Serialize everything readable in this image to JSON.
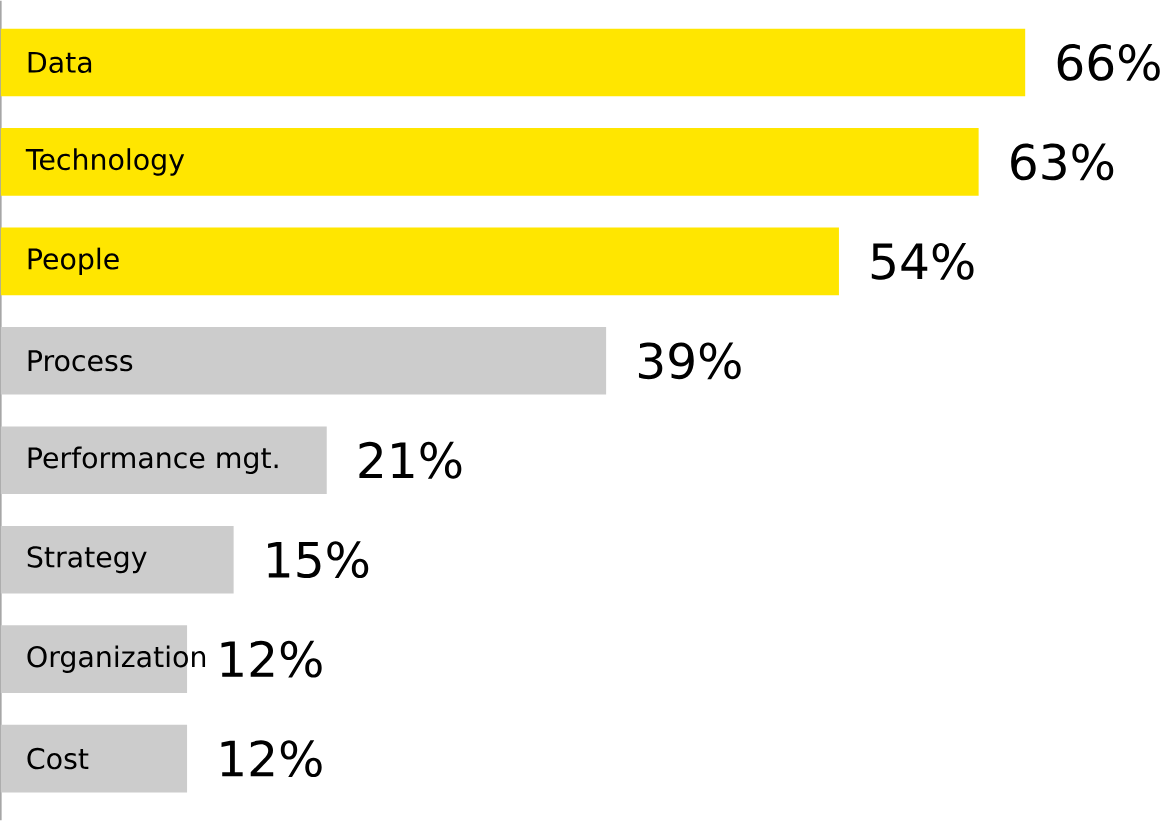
{
  "chart_data": {
    "type": "bar",
    "orientation": "horizontal",
    "categories": [
      "Data",
      "Technology",
      "People",
      "Process",
      "Performance mgt.",
      "Strategy",
      "Organization",
      "Cost"
    ],
    "values": [
      66,
      63,
      54,
      39,
      21,
      15,
      12,
      12
    ],
    "value_labels": [
      "66%",
      "63%",
      "54%",
      "39%",
      "21%",
      "15%",
      "12%",
      "12%"
    ],
    "colors": [
      "#ffe600",
      "#ffe600",
      "#ffe600",
      "#cccccc",
      "#cccccc",
      "#cccccc",
      "#cccccc",
      "#cccccc"
    ]
  }
}
